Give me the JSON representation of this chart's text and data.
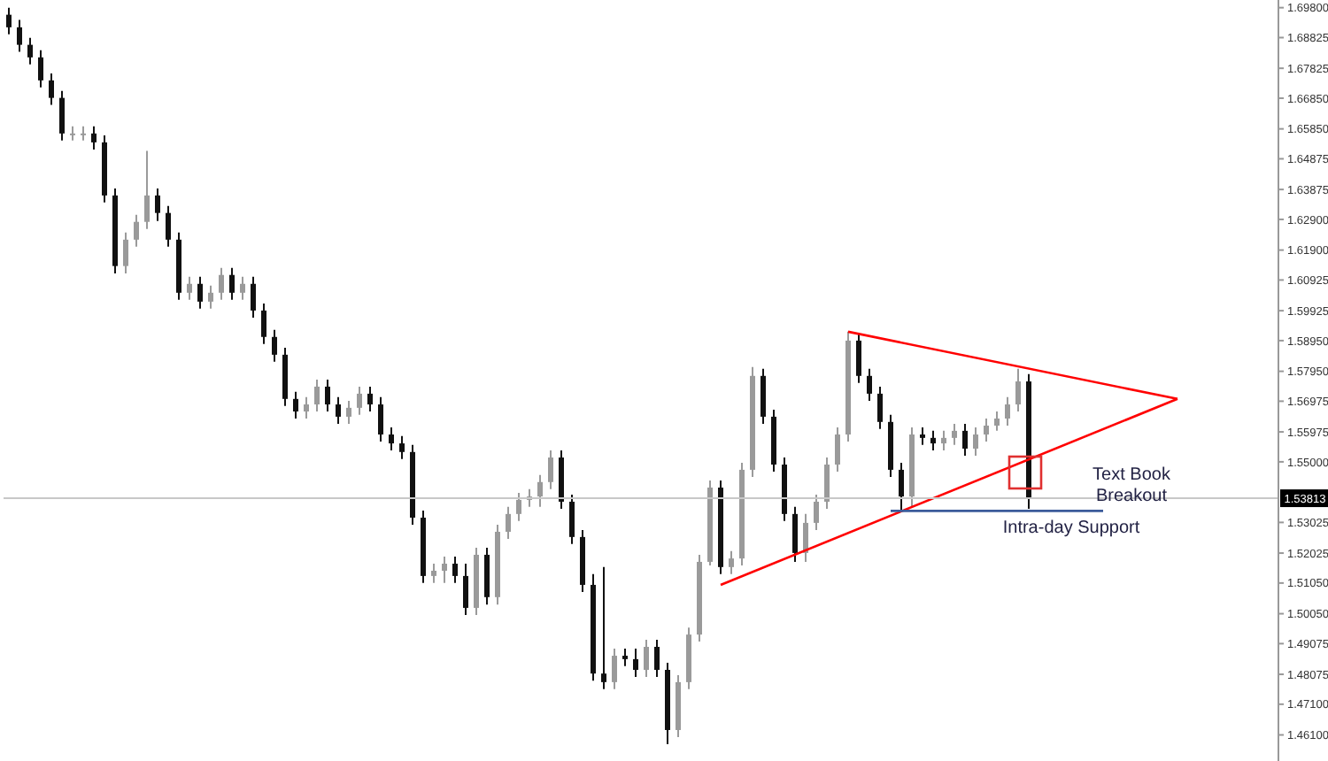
{
  "chart_data": {
    "type": "candlestick",
    "categories": [
      null,
      null,
      null,
      null,
      null,
      null,
      null,
      null,
      null,
      null,
      null,
      null,
      null,
      null,
      null,
      null,
      null,
      null,
      null,
      null,
      null,
      null,
      null,
      null,
      null,
      null,
      null,
      null,
      null,
      null,
      null,
      null,
      null,
      null,
      null,
      null,
      null,
      null,
      null,
      null,
      null,
      null,
      null,
      null,
      null,
      null,
      null,
      null,
      null,
      null,
      null,
      null,
      null,
      null,
      null,
      null,
      null,
      null,
      null,
      null,
      null,
      null,
      null,
      null,
      null,
      null,
      null,
      null,
      null,
      null,
      null,
      null,
      null,
      null,
      null,
      null,
      null,
      null,
      null,
      null,
      null,
      null,
      null,
      null,
      null,
      null,
      null,
      null,
      null,
      null,
      null,
      null,
      null,
      null,
      null,
      null,
      null,
      null,
      null,
      null,
      null,
      null,
      null,
      null,
      null,
      null,
      null,
      null,
      null,
      null,
      null,
      null,
      null,
      null,
      null,
      null,
      null,
      null,
      null,
      null
    ],
    "ohlc": [
      [
        1.6957,
        1.698,
        1.6893,
        1.6916
      ],
      [
        1.6916,
        1.694,
        1.6836,
        1.6859
      ],
      [
        1.6859,
        1.6882,
        1.6795,
        1.6818
      ],
      [
        1.6818,
        1.6841,
        1.672,
        1.6743
      ],
      [
        1.6743,
        1.6766,
        1.6663,
        1.6686
      ],
      [
        1.6686,
        1.6709,
        1.6547,
        1.657
      ],
      [
        1.657,
        1.6593,
        1.6547,
        1.657
      ],
      [
        1.657,
        1.6593,
        1.6547,
        1.657
      ],
      [
        1.657,
        1.6593,
        1.6518,
        1.6541
      ],
      [
        1.6541,
        1.6564,
        1.6345,
        1.6368
      ],
      [
        1.6368,
        1.6391,
        1.6114,
        1.6138
      ],
      [
        1.6138,
        1.6247,
        1.6114,
        1.6224
      ],
      [
        1.6224,
        1.6305,
        1.6201,
        1.6282
      ],
      [
        1.6282,
        1.6513,
        1.6259,
        1.6368
      ],
      [
        1.6368,
        1.6391,
        1.6285,
        1.6311
      ],
      [
        1.6311,
        1.6334,
        1.6201,
        1.6224
      ],
      [
        1.6224,
        1.6247,
        1.6028,
        1.6051
      ],
      [
        1.6051,
        1.6103,
        1.6028,
        1.608
      ],
      [
        1.608,
        1.6103,
        1.5999,
        1.6022
      ],
      [
        1.6022,
        1.6074,
        1.5999,
        1.6051
      ],
      [
        1.6051,
        1.6132,
        1.6028,
        1.6109
      ],
      [
        1.6109,
        1.6132,
        1.6028,
        1.6051
      ],
      [
        1.6051,
        1.6103,
        1.6028,
        1.608
      ],
      [
        1.608,
        1.6103,
        1.597,
        1.5993
      ],
      [
        1.5993,
        1.6016,
        1.5884,
        1.5907
      ],
      [
        1.5907,
        1.593,
        1.5826,
        1.5849
      ],
      [
        1.5849,
        1.5872,
        1.5682,
        1.5705
      ],
      [
        1.5705,
        1.5728,
        1.5641,
        1.5664
      ],
      [
        1.5664,
        1.5711,
        1.5641,
        1.5687
      ],
      [
        1.5687,
        1.5768,
        1.5664,
        1.5745
      ],
      [
        1.5745,
        1.5768,
        1.5664,
        1.5687
      ],
      [
        1.5687,
        1.5711,
        1.5624,
        1.5647
      ],
      [
        1.5647,
        1.5699,
        1.5624,
        1.5676
      ],
      [
        1.5676,
        1.5745,
        1.5653,
        1.5722
      ],
      [
        1.5722,
        1.5745,
        1.5664,
        1.5687
      ],
      [
        1.5687,
        1.5711,
        1.5566,
        1.5589
      ],
      [
        1.5589,
        1.5612,
        1.5537,
        1.556
      ],
      [
        1.556,
        1.5584,
        1.5509,
        1.5532
      ],
      [
        1.5532,
        1.5555,
        1.5295,
        1.5318
      ],
      [
        1.5318,
        1.5341,
        1.5105,
        1.5128
      ],
      [
        1.5128,
        1.5168,
        1.5105,
        1.5145
      ],
      [
        1.5145,
        1.5191,
        1.5105,
        1.5168
      ],
      [
        1.5168,
        1.5191,
        1.5105,
        1.5128
      ],
      [
        1.5128,
        1.5168,
        1.5001,
        1.5024
      ],
      [
        1.5024,
        1.522,
        1.5001,
        1.5197
      ],
      [
        1.5197,
        1.522,
        1.5035,
        1.5059
      ],
      [
        1.5059,
        1.5295,
        1.5035,
        1.5272
      ],
      [
        1.5272,
        1.5353,
        1.5249,
        1.533
      ],
      [
        1.533,
        1.5399,
        1.5307,
        1.5376
      ],
      [
        1.5376,
        1.5411,
        1.5353,
        1.5387
      ],
      [
        1.5387,
        1.5457,
        1.5353,
        1.5434
      ],
      [
        1.5434,
        1.5537,
        1.5411,
        1.5514
      ],
      [
        1.5514,
        1.5537,
        1.5347,
        1.537
      ],
      [
        1.537,
        1.5393,
        1.5232,
        1.5255
      ],
      [
        1.5255,
        1.5278,
        1.5076,
        1.5099
      ],
      [
        1.5099,
        1.5134,
        1.4787,
        1.481
      ],
      [
        1.481,
        1.5157,
        1.4759,
        1.4782
      ],
      [
        1.4782,
        1.4891,
        1.4759,
        1.4868
      ],
      [
        1.4868,
        1.4891,
        1.4834,
        1.4857
      ],
      [
        1.4857,
        1.4891,
        1.4799,
        1.4822
      ],
      [
        1.4822,
        1.492,
        1.4799,
        1.4897
      ],
      [
        1.4897,
        1.492,
        1.4799,
        1.4822
      ],
      [
        1.4822,
        1.4845,
        1.458,
        1.4626
      ],
      [
        1.4626,
        1.4805,
        1.4603,
        1.4782
      ],
      [
        1.4782,
        1.496,
        1.4759,
        1.4937
      ],
      [
        1.4937,
        1.5197,
        1.4914,
        1.5174
      ],
      [
        1.5174,
        1.5439,
        1.5162,
        1.5416
      ],
      [
        1.5416,
        1.5439,
        1.5134,
        1.5157
      ],
      [
        1.5157,
        1.5209,
        1.5134,
        1.5185
      ],
      [
        1.5185,
        1.5497,
        1.5162,
        1.5474
      ],
      [
        1.5474,
        1.5809,
        1.5451,
        1.578
      ],
      [
        1.578,
        1.5803,
        1.5624,
        1.5647
      ],
      [
        1.5647,
        1.567,
        1.5468,
        1.5491
      ],
      [
        1.5491,
        1.5514,
        1.5307,
        1.533
      ],
      [
        1.533,
        1.5353,
        1.5174,
        1.5203
      ],
      [
        1.5203,
        1.533,
        1.5174,
        1.5301
      ],
      [
        1.5301,
        1.5393,
        1.5278,
        1.537
      ],
      [
        1.537,
        1.5514,
        1.5347,
        1.5491
      ],
      [
        1.5491,
        1.5612,
        1.5468,
        1.5589
      ],
      [
        1.5589,
        1.5924,
        1.5566,
        1.5895
      ],
      [
        1.5895,
        1.5918,
        1.5757,
        1.578
      ],
      [
        1.578,
        1.5803,
        1.5699,
        1.5722
      ],
      [
        1.5722,
        1.5745,
        1.5607,
        1.563
      ],
      [
        1.563,
        1.5653,
        1.5451,
        1.5474
      ],
      [
        1.5474,
        1.5497,
        1.5336,
        1.5387
      ],
      [
        1.5387,
        1.5612,
        1.5353,
        1.5589
      ],
      [
        1.5589,
        1.5612,
        1.5555,
        1.5578
      ],
      [
        1.5578,
        1.5601,
        1.5537,
        1.556
      ],
      [
        1.556,
        1.5601,
        1.5537,
        1.5578
      ],
      [
        1.5578,
        1.5624,
        1.5555,
        1.5601
      ],
      [
        1.5601,
        1.5624,
        1.552,
        1.5543
      ],
      [
        1.5543,
        1.5612,
        1.552,
        1.5589
      ],
      [
        1.5589,
        1.5641,
        1.5566,
        1.5618
      ],
      [
        1.5618,
        1.5664,
        1.5601,
        1.5641
      ],
      [
        1.5641,
        1.5711,
        1.5618,
        1.5687
      ],
      [
        1.5687,
        1.5803,
        1.5664,
        1.5762
      ],
      [
        1.5762,
        1.5786,
        1.5347,
        1.5381
      ],
      null,
      null,
      null,
      null,
      null,
      null,
      null,
      null,
      null,
      null,
      null,
      null,
      null,
      null,
      null,
      null,
      null,
      null,
      null,
      null,
      null,
      null,
      null
    ],
    "series": [
      {
        "type": "line",
        "color": "#ff0000",
        "values": [
          null,
          null,
          null,
          null,
          null,
          null,
          null,
          null,
          null,
          null,
          null,
          null,
          null,
          null,
          null,
          null,
          null,
          null,
          null,
          null,
          null,
          null,
          null,
          null,
          null,
          null,
          null,
          null,
          null,
          null,
          null,
          null,
          null,
          null,
          null,
          null,
          null,
          null,
          null,
          null,
          null,
          null,
          null,
          null,
          null,
          null,
          null,
          null,
          null,
          null,
          null,
          null,
          null,
          null,
          null,
          null,
          null,
          null,
          null,
          null,
          null,
          null,
          null,
          null,
          null,
          null,
          null,
          null,
          null,
          null,
          null,
          null,
          null,
          null,
          null,
          null,
          null,
          null,
          null,
          1.5924,
          null,
          null,
          null,
          null,
          null,
          null,
          null,
          null,
          null,
          null,
          null,
          null,
          null,
          null,
          null,
          null,
          null,
          null,
          null,
          null,
          null,
          null,
          null,
          null,
          null,
          null,
          null,
          null,
          null,
          null,
          1.5705,
          null,
          null,
          null,
          null,
          null,
          null,
          null,
          null,
          null
        ]
      },
      {
        "type": "line",
        "color": "#ff0000",
        "values": [
          null,
          null,
          null,
          null,
          null,
          null,
          null,
          null,
          null,
          null,
          null,
          null,
          null,
          null,
          null,
          null,
          null,
          null,
          null,
          null,
          null,
          null,
          null,
          null,
          null,
          null,
          null,
          null,
          null,
          null,
          null,
          null,
          null,
          null,
          null,
          null,
          null,
          null,
          null,
          null,
          null,
          null,
          null,
          null,
          null,
          null,
          null,
          null,
          null,
          null,
          null,
          null,
          null,
          null,
          null,
          null,
          null,
          null,
          null,
          null,
          null,
          null,
          null,
          null,
          null,
          null,
          null,
          1.5099,
          null,
          null,
          null,
          null,
          null,
          null,
          null,
          null,
          null,
          null,
          null,
          null,
          null,
          null,
          null,
          null,
          null,
          null,
          null,
          null,
          null,
          null,
          null,
          null,
          null,
          null,
          null,
          null,
          null,
          null,
          null,
          null,
          null,
          null,
          null,
          null,
          null,
          null,
          null,
          null,
          null,
          null,
          1.5705,
          null,
          null,
          null,
          null,
          null,
          null,
          null,
          null,
          null
        ]
      },
      {
        "type": "line",
        "color": "#3b5b9a",
        "values": [
          null,
          null,
          null,
          null,
          null,
          null,
          null,
          null,
          null,
          null,
          null,
          null,
          null,
          null,
          null,
          null,
          null,
          null,
          null,
          null,
          null,
          null,
          null,
          null,
          null,
          null,
          null,
          null,
          null,
          null,
          null,
          null,
          null,
          null,
          null,
          null,
          null,
          null,
          null,
          null,
          null,
          null,
          null,
          null,
          null,
          null,
          null,
          null,
          null,
          null,
          null,
          null,
          null,
          null,
          null,
          null,
          null,
          null,
          null,
          null,
          null,
          null,
          null,
          null,
          null,
          null,
          null,
          null,
          null,
          null,
          null,
          null,
          null,
          null,
          null,
          null,
          null,
          null,
          null,
          null,
          null,
          null,
          null,
          1.534,
          null,
          null,
          null,
          null,
          null,
          null,
          null,
          null,
          null,
          null,
          null,
          null,
          null,
          null,
          null,
          null,
          null,
          null,
          null,
          1.534,
          null,
          null,
          null,
          null,
          null,
          null,
          null,
          null,
          null,
          null,
          null,
          null,
          null,
          null,
          null,
          null
        ]
      }
    ],
    "ylim": [
      1.4525,
      1.7005
    ],
    "yticks": [
      {
        "value": 1.698,
        "label": "1.69800"
      },
      {
        "value": 1.68825,
        "label": "1.68825"
      },
      {
        "value": 1.67825,
        "label": "1.67825"
      },
      {
        "value": 1.6685,
        "label": "1.66850"
      },
      {
        "value": 1.6585,
        "label": "1.65850"
      },
      {
        "value": 1.64875,
        "label": "1.64875"
      },
      {
        "value": 1.63875,
        "label": "1.63875"
      },
      {
        "value": 1.629,
        "label": "1.62900"
      },
      {
        "value": 1.619,
        "label": "1.61900"
      },
      {
        "value": 1.60925,
        "label": "1.60925"
      },
      {
        "value": 1.59925,
        "label": "1.59925"
      },
      {
        "value": 1.5895,
        "label": "1.58950"
      },
      {
        "value": 1.5795,
        "label": "1.57950"
      },
      {
        "value": 1.56975,
        "label": "1.56975"
      },
      {
        "value": 1.55975,
        "label": "1.55975"
      },
      {
        "value": 1.55,
        "label": "1.55000"
      },
      {
        "value": 1.53025,
        "label": "1.53025"
      },
      {
        "value": 1.52025,
        "label": "1.52025"
      },
      {
        "value": 1.5105,
        "label": "1.51050"
      },
      {
        "value": 1.5005,
        "label": "1.50050"
      },
      {
        "value": 1.49075,
        "label": "1.49075"
      },
      {
        "value": 1.48075,
        "label": "1.48075"
      },
      {
        "value": 1.471,
        "label": "1.47100"
      },
      {
        "value": 1.461,
        "label": "1.46100"
      }
    ],
    "ref_lines": [
      {
        "axis": "y",
        "value": 1.53813,
        "label": "1.53813",
        "color": "#c8c8c8"
      }
    ],
    "annotations": [
      "Text Book Breakout",
      "Intra-day Support"
    ],
    "tick_labels": "y",
    "grid": false,
    "legend": false
  }
}
